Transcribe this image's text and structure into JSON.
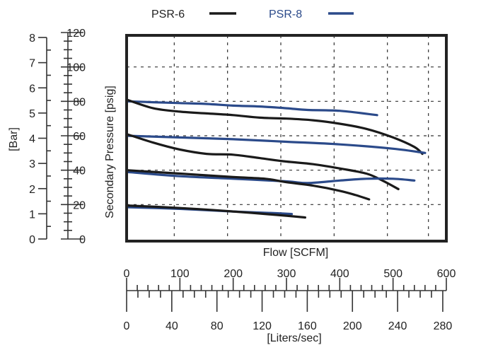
{
  "chart_data": {
    "type": "line",
    "legend": {
      "position": "top-center",
      "entries": [
        {
          "name": "PSR-6",
          "color": "#1a1a1a"
        },
        {
          "name": "PSR-8",
          "color": "#2b4a8a"
        }
      ]
    },
    "xlabel": "Flow [SCFM]",
    "ylabel": "Secondary Pressure [psig]",
    "ylabel_left": "[Bar]",
    "xlim": [
      0,
      600
    ],
    "ylim": [
      0,
      120
    ],
    "grid": true,
    "x_ticks": [
      0,
      100,
      200,
      300,
      400,
      500,
      600
    ],
    "x_tick_labels": [
      "0",
      "100",
      "200",
      "300",
      "400",
      "500",
      "600"
    ],
    "y_ticks": [
      0,
      20,
      40,
      60,
      80,
      100,
      120
    ],
    "y_tick_labels": [
      "0",
      "20",
      "40",
      "60",
      "80",
      "100",
      "120"
    ],
    "bar_axis": {
      "label": "[Bar]",
      "ticks": [
        0,
        1,
        2,
        3,
        4,
        5,
        6,
        7,
        8
      ],
      "tick_labels": [
        "0",
        "1",
        "2",
        "3",
        "4",
        "5",
        "6",
        "7",
        "8"
      ]
    },
    "liters_axis": {
      "label": "[Liters/sec]",
      "max": 283.17,
      "ticks": [
        0,
        40,
        80,
        120,
        160,
        200,
        240,
        280
      ],
      "tick_labels": [
        "0",
        "40",
        "80",
        "120",
        "160",
        "200",
        "240",
        "280"
      ]
    },
    "series": [
      {
        "name": "PSR-8",
        "color": "#2b4a8a",
        "points": [
          [
            0,
            80
          ],
          [
            50,
            79.5
          ],
          [
            100,
            79
          ],
          [
            150,
            78.5
          ],
          [
            200,
            77.5
          ],
          [
            250,
            77
          ],
          [
            300,
            76
          ],
          [
            340,
            75
          ],
          [
            400,
            74.5
          ],
          [
            470,
            72
          ]
        ]
      },
      {
        "name": "PSR-6",
        "color": "#1a1a1a",
        "points": [
          [
            0,
            81
          ],
          [
            50,
            76
          ],
          [
            100,
            74
          ],
          [
            150,
            73
          ],
          [
            200,
            72
          ],
          [
            250,
            70.5
          ],
          [
            300,
            70
          ],
          [
            350,
            69
          ],
          [
            400,
            67
          ],
          [
            450,
            64
          ],
          [
            500,
            59
          ],
          [
            540,
            53.5
          ],
          [
            555,
            49.5
          ]
        ]
      },
      {
        "name": "PSR-8",
        "color": "#2b4a8a",
        "points": [
          [
            0,
            60
          ],
          [
            100,
            59
          ],
          [
            200,
            58
          ],
          [
            300,
            56.5
          ],
          [
            400,
            55
          ],
          [
            500,
            52.5
          ],
          [
            560,
            50
          ]
        ]
      },
      {
        "name": "PSR-6",
        "color": "#1a1a1a",
        "points": [
          [
            0,
            61
          ],
          [
            50,
            56
          ],
          [
            100,
            52
          ],
          [
            150,
            49.5
          ],
          [
            200,
            49
          ],
          [
            250,
            47
          ],
          [
            300,
            45
          ],
          [
            350,
            43.5
          ],
          [
            400,
            41
          ],
          [
            450,
            38
          ],
          [
            480,
            34
          ],
          [
            510,
            29
          ]
        ]
      },
      {
        "name": "PSR-8",
        "color": "#2b4a8a",
        "points": [
          [
            0,
            39
          ],
          [
            100,
            36.5
          ],
          [
            200,
            35
          ],
          [
            300,
            33.5
          ],
          [
            340,
            32.5
          ],
          [
            400,
            34
          ],
          [
            450,
            35
          ],
          [
            500,
            35
          ],
          [
            540,
            34
          ]
        ]
      },
      {
        "name": "PSR-6",
        "color": "#1a1a1a",
        "points": [
          [
            0,
            40
          ],
          [
            100,
            38
          ],
          [
            200,
            36
          ],
          [
            260,
            35
          ],
          [
            300,
            33
          ],
          [
            350,
            31
          ],
          [
            400,
            28
          ],
          [
            430,
            25.5
          ],
          [
            455,
            23
          ]
        ]
      },
      {
        "name": "PSR-8",
        "color": "#2b4a8a",
        "points": [
          [
            0,
            18.5
          ],
          [
            100,
            17.5
          ],
          [
            200,
            16
          ],
          [
            280,
            15
          ],
          [
            310,
            14.5
          ]
        ]
      },
      {
        "name": "PSR-6",
        "color": "#1a1a1a",
        "points": [
          [
            0,
            19.5
          ],
          [
            100,
            18
          ],
          [
            200,
            16
          ],
          [
            300,
            13.5
          ],
          [
            335,
            12.5
          ]
        ]
      }
    ]
  }
}
